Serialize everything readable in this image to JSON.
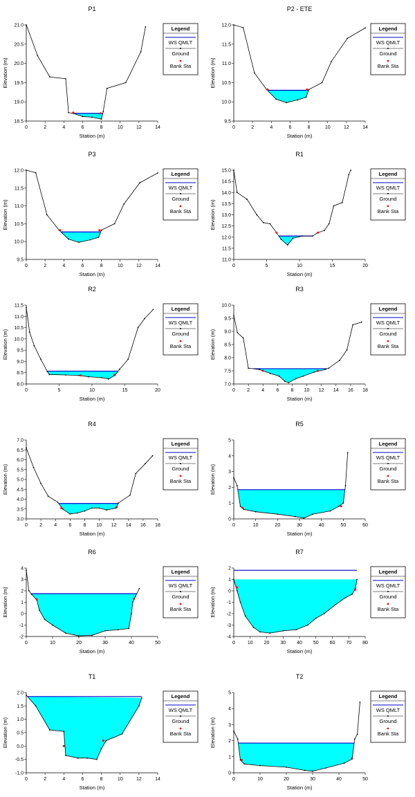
{
  "legend": {
    "title": "Legend",
    "ws_label": "WS QMLT",
    "ground_label": "Ground",
    "bank_label": "Bank Sta"
  },
  "colors": {
    "water_fill": "#00ffff",
    "water_line": "#0000cc",
    "ground_line": "#000000",
    "bank_marker": "#ff0000",
    "axis": "#000000"
  },
  "chart_data": [
    {
      "id": "p1",
      "type": "area",
      "title": "P1",
      "xlabel": "Station (m)",
      "ylabel": "Elevation (m)",
      "xlim": [
        0,
        14
      ],
      "ylim": [
        18.5,
        21.0
      ],
      "xticks": [
        0,
        2,
        4,
        6,
        8,
        10,
        12,
        14
      ],
      "yticks": [
        18.5,
        19.0,
        19.5,
        20.0,
        20.5,
        21.0
      ],
      "ytick_labels": [
        "18.5",
        "19.0",
        "19.5",
        "20.0",
        "20.5",
        "21.0"
      ],
      "ground": [
        [
          0,
          21.0
        ],
        [
          1.2,
          20.2
        ],
        [
          2.5,
          19.65
        ],
        [
          4.2,
          19.6
        ],
        [
          4.5,
          18.72
        ],
        [
          5.0,
          18.7
        ],
        [
          6.0,
          18.62
        ],
        [
          7.0,
          18.6
        ],
        [
          8.0,
          18.55
        ],
        [
          8.2,
          18.75
        ],
        [
          8.6,
          19.35
        ],
        [
          10.6,
          19.5
        ],
        [
          12.2,
          20.3
        ],
        [
          12.7,
          20.95
        ]
      ],
      "ws": 18.7,
      "banks": [
        [
          5.0,
          18.72
        ],
        [
          7.9,
          18.7
        ]
      ]
    },
    {
      "id": "p2",
      "type": "area",
      "title": "P2 - ETE",
      "xlabel": "Station (m)",
      "ylabel": "Elevation (m)",
      "xlim": [
        0,
        14
      ],
      "ylim": [
        9.5,
        12.0
      ],
      "xticks": [
        0,
        2,
        4,
        6,
        8,
        10,
        12,
        14
      ],
      "yticks": [
        9.5,
        10.0,
        10.5,
        11.0,
        11.5,
        12.0
      ],
      "ytick_labels": [
        "9.5",
        "10.0",
        "10.5",
        "11.0",
        "11.5",
        "12.0"
      ],
      "ground": [
        [
          0,
          12.0
        ],
        [
          1.0,
          11.93
        ],
        [
          2.2,
          10.75
        ],
        [
          3.5,
          10.32
        ],
        [
          4.5,
          10.07
        ],
        [
          5.6,
          9.98
        ],
        [
          6.8,
          10.05
        ],
        [
          7.7,
          10.12
        ],
        [
          8.0,
          10.32
        ],
        [
          9.4,
          10.5
        ],
        [
          10.4,
          11.05
        ],
        [
          12.1,
          11.65
        ],
        [
          14.0,
          11.92
        ]
      ],
      "ws": 10.3,
      "banks": [
        [
          3.6,
          10.32
        ],
        [
          7.8,
          10.32
        ]
      ]
    },
    {
      "id": "p3",
      "type": "area",
      "title": "P3",
      "xlabel": "Station (m)",
      "ylabel": "Elevation (m)",
      "xlim": [
        0,
        14
      ],
      "ylim": [
        9.5,
        12.0
      ],
      "xticks": [
        0,
        2,
        4,
        6,
        8,
        10,
        12,
        14
      ],
      "yticks": [
        9.5,
        10.0,
        10.5,
        11.0,
        11.5,
        12.0
      ],
      "ytick_labels": [
        "9.5",
        "10.0",
        "10.5",
        "11.0",
        "11.5",
        "12.0"
      ],
      "ground": [
        [
          0,
          12.0
        ],
        [
          1.0,
          11.93
        ],
        [
          2.2,
          10.75
        ],
        [
          3.5,
          10.32
        ],
        [
          4.5,
          10.07
        ],
        [
          5.6,
          9.98
        ],
        [
          6.8,
          10.05
        ],
        [
          7.7,
          10.12
        ],
        [
          8.0,
          10.32
        ],
        [
          9.4,
          10.5
        ],
        [
          10.4,
          11.05
        ],
        [
          12.1,
          11.65
        ],
        [
          14.0,
          11.92
        ]
      ],
      "ws": 10.27,
      "banks": [
        [
          3.6,
          10.32
        ],
        [
          7.8,
          10.32
        ]
      ]
    },
    {
      "id": "r1",
      "type": "area",
      "title": "R1",
      "xlabel": "Station (m)",
      "ylabel": "Elevation (m)",
      "xlim": [
        0,
        20
      ],
      "ylim": [
        11.0,
        15.0
      ],
      "xticks": [
        0,
        5,
        10,
        15,
        20
      ],
      "yticks": [
        11.0,
        11.5,
        12.0,
        12.5,
        13.0,
        13.5,
        14.0,
        14.5,
        15.0
      ],
      "ytick_labels": [
        "11.0",
        "11.5",
        "12.0",
        "12.5",
        "13.0",
        "13.5",
        "14.0",
        "14.5",
        "15.0"
      ],
      "ground": [
        [
          0,
          15.0
        ],
        [
          0.5,
          14.0
        ],
        [
          2.0,
          13.7
        ],
        [
          3.5,
          13.0
        ],
        [
          4.5,
          12.65
        ],
        [
          5.5,
          12.6
        ],
        [
          6.5,
          12.2
        ],
        [
          7.2,
          11.9
        ],
        [
          8.2,
          11.65
        ],
        [
          9.0,
          11.95
        ],
        [
          10.5,
          12.05
        ],
        [
          12.0,
          12.05
        ],
        [
          12.8,
          12.2
        ],
        [
          13.8,
          12.3
        ],
        [
          14.5,
          12.6
        ],
        [
          15.2,
          13.4
        ],
        [
          16.5,
          13.55
        ],
        [
          17.5,
          14.8
        ],
        [
          17.8,
          15.0
        ]
      ],
      "ws": 12.05,
      "banks": [
        [
          6.5,
          12.2
        ],
        [
          12.8,
          12.2
        ]
      ]
    },
    {
      "id": "r2",
      "type": "area",
      "title": "R2",
      "xlabel": "Station (m)",
      "ylabel": "Elevation (m)",
      "xlim": [
        0,
        20
      ],
      "ylim": [
        8.0,
        11.5
      ],
      "xticks": [
        0,
        5,
        10,
        15,
        20
      ],
      "yticks": [
        8.0,
        8.5,
        9.0,
        9.5,
        10.0,
        10.5,
        11.0,
        11.5
      ],
      "ytick_labels": [
        "8.0",
        "8.5",
        "9.0",
        "9.5",
        "10.0",
        "10.5",
        "11.0",
        "11.5"
      ],
      "ground": [
        [
          0,
          11.4
        ],
        [
          0.5,
          10.3
        ],
        [
          1.2,
          9.7
        ],
        [
          2.2,
          9.1
        ],
        [
          3.2,
          8.55
        ],
        [
          3.5,
          8.42
        ],
        [
          6.0,
          8.4
        ],
        [
          8.0,
          8.38
        ],
        [
          9.5,
          8.32
        ],
        [
          11.5,
          8.28
        ],
        [
          12.5,
          8.22
        ],
        [
          13.5,
          8.38
        ],
        [
          14.2,
          8.65
        ],
        [
          15.5,
          9.1
        ],
        [
          17.0,
          10.5
        ],
        [
          18.0,
          10.9
        ],
        [
          19.3,
          11.3
        ]
      ],
      "ws": 8.57,
      "banks": [
        [
          8.3,
          8.38
        ],
        [
          13.4,
          8.4
        ]
      ]
    },
    {
      "id": "r3",
      "type": "area",
      "title": "R3",
      "xlabel": "Station (m)",
      "ylabel": "Elevation (m)",
      "xlim": [
        0,
        18
      ],
      "ylim": [
        7.0,
        10.0
      ],
      "xticks": [
        0,
        2,
        4,
        6,
        8,
        10,
        12,
        14,
        16,
        18
      ],
      "yticks": [
        7.0,
        7.5,
        8.0,
        8.5,
        9.0,
        9.5,
        10.0
      ],
      "ytick_labels": [
        "7.0",
        "7.5",
        "8.0",
        "8.5",
        "9.0",
        "9.5",
        "10.0"
      ],
      "ground": [
        [
          0,
          9.6
        ],
        [
          0.5,
          8.95
        ],
        [
          1.3,
          8.75
        ],
        [
          2.0,
          7.6
        ],
        [
          3.5,
          7.55
        ],
        [
          5.0,
          7.4
        ],
        [
          6.2,
          7.3
        ],
        [
          7.0,
          7.1
        ],
        [
          7.5,
          7.05
        ],
        [
          8.5,
          7.2
        ],
        [
          9.5,
          7.3
        ],
        [
          11.0,
          7.45
        ],
        [
          12.5,
          7.55
        ],
        [
          13.0,
          7.6
        ],
        [
          14.5,
          7.9
        ],
        [
          15.5,
          8.3
        ],
        [
          16.3,
          9.25
        ],
        [
          17.5,
          9.35
        ]
      ],
      "ws": 7.58,
      "banks": [
        [
          4.0,
          7.5
        ],
        [
          11.5,
          7.5
        ]
      ]
    },
    {
      "id": "r4",
      "type": "area",
      "title": "R4",
      "xlabel": "Station (m)",
      "ylabel": "Elevation (m)",
      "xlim": [
        0,
        18
      ],
      "ylim": [
        3.0,
        7.0
      ],
      "xticks": [
        0,
        2,
        4,
        6,
        8,
        10,
        12,
        14,
        16,
        18
      ],
      "yticks": [
        3.0,
        3.5,
        4.0,
        4.5,
        5.0,
        5.5,
        6.0,
        6.5,
        7.0
      ],
      "ytick_labels": [
        "3.0",
        "3.5",
        "4.0",
        "4.5",
        "5.0",
        "5.5",
        "6.0",
        "6.5",
        "7.0"
      ],
      "ground": [
        [
          0,
          6.6
        ],
        [
          1.0,
          5.6
        ],
        [
          2.0,
          4.8
        ],
        [
          3.0,
          4.15
        ],
        [
          4.3,
          3.85
        ],
        [
          5.0,
          3.5
        ],
        [
          6.0,
          3.25
        ],
        [
          7.0,
          3.3
        ],
        [
          8.0,
          3.4
        ],
        [
          9.0,
          3.55
        ],
        [
          10.0,
          3.55
        ],
        [
          11.0,
          3.45
        ],
        [
          12.3,
          3.55
        ],
        [
          12.6,
          3.8
        ],
        [
          14.2,
          4.2
        ],
        [
          15.0,
          5.3
        ],
        [
          16.3,
          5.8
        ],
        [
          17.3,
          6.2
        ]
      ],
      "ws": 3.78,
      "banks": [
        [
          4.8,
          3.55
        ],
        [
          12.4,
          3.6
        ]
      ]
    },
    {
      "id": "r5",
      "type": "area",
      "title": "R5",
      "xlabel": "Station (m)",
      "ylabel": "Elevation (m)",
      "xlim": [
        0,
        60
      ],
      "ylim": [
        0,
        5
      ],
      "xticks": [
        0,
        10,
        20,
        30,
        40,
        50,
        60
      ],
      "yticks": [
        0,
        1,
        2,
        3,
        4,
        5
      ],
      "ytick_labels": [
        "0",
        "1",
        "2",
        "3",
        "4",
        "5"
      ],
      "ground": [
        [
          0,
          2.6
        ],
        [
          1.5,
          2.1
        ],
        [
          3.0,
          0.8
        ],
        [
          4.5,
          0.6
        ],
        [
          10,
          0.45
        ],
        [
          20,
          0.3
        ],
        [
          28,
          0.15
        ],
        [
          32,
          0.05
        ],
        [
          36,
          0.3
        ],
        [
          44,
          0.5
        ],
        [
          48,
          0.8
        ],
        [
          50,
          1.0
        ],
        [
          51,
          2.1
        ],
        [
          52,
          4.2
        ]
      ],
      "ws": 1.85,
      "banks": [
        [
          4.0,
          0.7
        ],
        [
          49.0,
          0.8
        ]
      ]
    },
    {
      "id": "r6",
      "type": "area",
      "title": "R6",
      "xlabel": "Station (m)",
      "ylabel": "Elevation (m)",
      "xlim": [
        0,
        50
      ],
      "ylim": [
        -2,
        4
      ],
      "xticks": [
        0,
        10,
        20,
        30,
        40,
        50
      ],
      "yticks": [
        -2,
        -1,
        0,
        1,
        2,
        3,
        4
      ],
      "ytick_labels": [
        "-2",
        "-1",
        "0",
        "1",
        "2",
        "3",
        "4"
      ],
      "ground": [
        [
          0,
          3.8
        ],
        [
          1.0,
          2.0
        ],
        [
          2.0,
          1.7
        ],
        [
          4.0,
          1.2
        ],
        [
          5.0,
          0.3
        ],
        [
          7.0,
          -0.5
        ],
        [
          10.0,
          -1.0
        ],
        [
          15.0,
          -1.7
        ],
        [
          20.0,
          -1.95
        ],
        [
          25.0,
          -1.9
        ],
        [
          30.0,
          -1.5
        ],
        [
          35.0,
          -1.4
        ],
        [
          39.0,
          -1.3
        ],
        [
          40.0,
          0.0
        ],
        [
          40.5,
          1.0
        ],
        [
          41.5,
          1.5
        ],
        [
          43.0,
          2.2
        ]
      ],
      "ws": 1.75,
      "banks": [
        [
          4.0,
          1.25
        ],
        [
          41.0,
          1.3
        ]
      ]
    },
    {
      "id": "r7",
      "type": "area",
      "title": "R7",
      "xlabel": "Station (m)",
      "ylabel": "Elevation (m)",
      "xlim": [
        0,
        80
      ],
      "ylim": [
        -4,
        2
      ],
      "xticks": [
        0,
        10,
        20,
        30,
        40,
        50,
        60,
        70,
        80
      ],
      "yticks": [
        -4,
        -3,
        -2,
        -1,
        0,
        1,
        2
      ],
      "ytick_labels": [
        "-4",
        "-3",
        "-2",
        "-1",
        "0",
        "1",
        "2"
      ],
      "ground": [
        [
          0,
          1.0
        ],
        [
          2.0,
          0.0
        ],
        [
          4.0,
          -1.0
        ],
        [
          7.0,
          -2.2
        ],
        [
          12.0,
          -3.2
        ],
        [
          16.0,
          -3.6
        ],
        [
          22.0,
          -3.7
        ],
        [
          30.0,
          -3.5
        ],
        [
          38.0,
          -3.4
        ],
        [
          45.0,
          -3.0
        ],
        [
          50.0,
          -2.4
        ],
        [
          55.0,
          -2.0
        ],
        [
          62.0,
          -1.2
        ],
        [
          68.0,
          -0.6
        ],
        [
          72.0,
          -0.3
        ],
        [
          74.0,
          0.2
        ],
        [
          75.0,
          1.0
        ]
      ],
      "ws": 1.8,
      "banks": [
        [
          2.0,
          0.3
        ],
        [
          74.0,
          0.1
        ]
      ]
    },
    {
      "id": "t1",
      "type": "area",
      "title": "T1",
      "xlabel": "Station (m)",
      "ylabel": "Elevation (m)",
      "xlim": [
        0,
        14
      ],
      "ylim": [
        -1.0,
        2.0
      ],
      "xticks": [
        0,
        2,
        4,
        6,
        8,
        10,
        12,
        14
      ],
      "yticks": [
        -1.0,
        -0.5,
        0.0,
        0.5,
        1.0,
        1.5,
        2.0
      ],
      "ytick_labels": [
        "-1.0",
        "-0.5",
        "0.0",
        "0.5",
        "1.0",
        "1.5",
        "2.0"
      ],
      "ground": [
        [
          0,
          1.9
        ],
        [
          1.0,
          1.5
        ],
        [
          2.5,
          0.6
        ],
        [
          4.0,
          0.55
        ],
        [
          4.2,
          -0.35
        ],
        [
          5.5,
          -0.45
        ],
        [
          6.5,
          -0.45
        ],
        [
          7.5,
          -0.5
        ],
        [
          8.0,
          -0.1
        ],
        [
          8.5,
          0.2
        ],
        [
          10.2,
          0.45
        ],
        [
          12.0,
          1.5
        ],
        [
          12.3,
          1.8
        ]
      ],
      "ws": 1.85,
      "banks": [
        [
          4.0,
          0.0
        ],
        [
          8.2,
          0.2
        ]
      ]
    },
    {
      "id": "t2",
      "type": "area",
      "title": "T2",
      "xlabel": "Station (m)",
      "ylabel": "Elevation (m)",
      "xlim": [
        0,
        50
      ],
      "ylim": [
        0,
        5
      ],
      "xticks": [
        0,
        10,
        20,
        30,
        40,
        50
      ],
      "yticks": [
        0,
        1,
        2,
        3,
        4,
        5
      ],
      "ytick_labels": [
        "0",
        "1",
        "2",
        "3",
        "4",
        "5"
      ],
      "ground": [
        [
          0,
          2.6
        ],
        [
          1.5,
          2.1
        ],
        [
          2.5,
          0.8
        ],
        [
          4.0,
          0.55
        ],
        [
          10,
          0.45
        ],
        [
          20,
          0.35
        ],
        [
          27,
          0.15
        ],
        [
          30,
          0.1
        ],
        [
          35,
          0.3
        ],
        [
          42,
          0.6
        ],
        [
          45,
          0.85
        ],
        [
          46,
          2.1
        ],
        [
          47,
          2.4
        ],
        [
          48,
          4.4
        ]
      ],
      "ws": 1.85,
      "banks": [
        [
          3.0,
          0.8
        ],
        [
          45.0,
          0.9
        ]
      ]
    }
  ]
}
